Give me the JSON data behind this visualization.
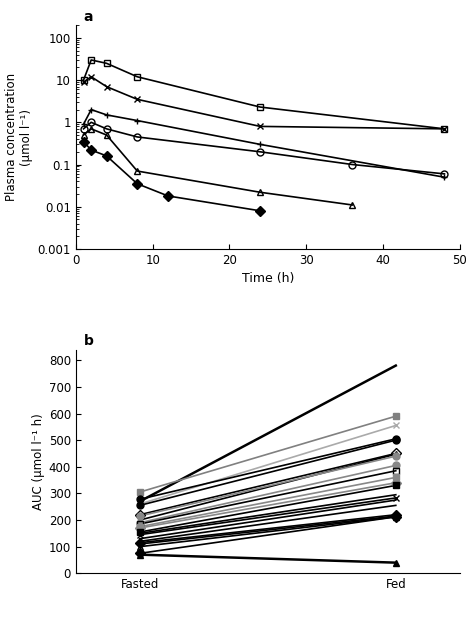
{
  "panel_a": {
    "title": "a",
    "xlabel": "Time (h)",
    "ylabel": "Plasma concentration\n(μmol l⁻¹)",
    "series": [
      {
        "label": "square_open",
        "marker": "s",
        "fillstyle": "none",
        "color": "black",
        "lw": 1.2,
        "x": [
          1,
          2,
          4,
          8,
          24,
          48
        ],
        "y": [
          10,
          30,
          25,
          12,
          2.3,
          0.7
        ]
      },
      {
        "label": "x_marker",
        "marker": "x",
        "fillstyle": "full",
        "color": "black",
        "lw": 1.2,
        "x": [
          1,
          2,
          4,
          8,
          24,
          48
        ],
        "y": [
          9,
          12,
          7,
          3.5,
          0.8,
          0.7
        ]
      },
      {
        "label": "plus_marker",
        "marker": "+",
        "fillstyle": "full",
        "color": "black",
        "lw": 1.2,
        "x": [
          1,
          2,
          4,
          8,
          24,
          48
        ],
        "y": [
          0.9,
          2.0,
          1.5,
          1.1,
          0.3,
          0.05
        ]
      },
      {
        "label": "circle_open",
        "marker": "o",
        "fillstyle": "none",
        "color": "black",
        "lw": 1.2,
        "x": [
          1,
          2,
          4,
          8,
          24,
          36,
          48
        ],
        "y": [
          0.7,
          1.0,
          0.7,
          0.45,
          0.2,
          0.1,
          0.06
        ]
      },
      {
        "label": "triangle_open",
        "marker": "^",
        "fillstyle": "none",
        "color": "black",
        "lw": 1.2,
        "x": [
          1,
          2,
          4,
          8,
          24,
          36
        ],
        "y": [
          0.5,
          0.7,
          0.5,
          0.07,
          0.022,
          0.011
        ]
      },
      {
        "label": "diamond_filled",
        "marker": "D",
        "fillstyle": "full",
        "color": "black",
        "lw": 1.2,
        "x": [
          1,
          2,
          4,
          8,
          12,
          24
        ],
        "y": [
          0.35,
          0.22,
          0.16,
          0.035,
          0.018,
          0.008
        ]
      }
    ],
    "ylim": [
      0.001,
      200
    ],
    "xlim": [
      0,
      50
    ],
    "xticks": [
      0,
      10,
      20,
      30,
      40,
      50
    ]
  },
  "panel_b": {
    "title": "b",
    "xlabel_fasted": "Fasted",
    "xlabel_fed": "Fed",
    "ylabel": "AUC (μmol l⁻¹ h)",
    "ylim": [
      0,
      840
    ],
    "yticks": [
      0,
      100,
      200,
      300,
      400,
      500,
      600,
      700,
      800
    ],
    "pairs": [
      {
        "fasted": 270,
        "fed": 780,
        "color": "black",
        "marker": null,
        "mfc": null,
        "lw": 1.8
      },
      {
        "fasted": 305,
        "fed": 590,
        "color": "#808080",
        "marker": "s",
        "mfc": "#808080",
        "lw": 1.2
      },
      {
        "fasted": 260,
        "fed": 555,
        "color": "#aaaaaa",
        "marker": "x",
        "mfc": "#aaaaaa",
        "lw": 1.2
      },
      {
        "fasted": 278,
        "fed": 505,
        "color": "black",
        "marker": "o",
        "mfc": "black",
        "lw": 1.2
      },
      {
        "fasted": 255,
        "fed": 500,
        "color": "black",
        "marker": "o",
        "mfc": "black",
        "lw": 1.2
      },
      {
        "fasted": 220,
        "fed": 450,
        "color": "black",
        "marker": "D",
        "mfc": "none",
        "lw": 1.2
      },
      {
        "fasted": 200,
        "fed": 447,
        "color": "black",
        "marker": "^",
        "mfc": "none",
        "lw": 1.2
      },
      {
        "fasted": 215,
        "fed": 440,
        "color": "#888888",
        "marker": "o",
        "mfc": "#888888",
        "lw": 1.2
      },
      {
        "fasted": 190,
        "fed": 405,
        "color": "#888888",
        "marker": "o",
        "mfc": "#888888",
        "lw": 1.2
      },
      {
        "fasted": 185,
        "fed": 385,
        "color": "black",
        "marker": "s",
        "mfc": "none",
        "lw": 1.2
      },
      {
        "fasted": 175,
        "fed": 360,
        "color": "#888888",
        "marker": "s",
        "mfc": "#888888",
        "lw": 1.2
      },
      {
        "fasted": 170,
        "fed": 340,
        "color": "#888888",
        "marker": "D",
        "mfc": "#888888",
        "lw": 1.2
      },
      {
        "fasted": 155,
        "fed": 330,
        "color": "black",
        "marker": "s",
        "mfc": "black",
        "lw": 1.2
      },
      {
        "fasted": 150,
        "fed": 295,
        "color": "black",
        "marker": null,
        "mfc": null,
        "lw": 1.2
      },
      {
        "fasted": 145,
        "fed": 283,
        "color": "black",
        "marker": "x",
        "mfc": "black",
        "lw": 1.2
      },
      {
        "fasted": 130,
        "fed": 275,
        "color": "black",
        "marker": null,
        "mfc": null,
        "lw": 1.2
      },
      {
        "fasted": 120,
        "fed": 255,
        "color": "black",
        "marker": null,
        "mfc": null,
        "lw": 1.2
      },
      {
        "fasted": 115,
        "fed": 220,
        "color": "black",
        "marker": "D",
        "mfc": "black",
        "lw": 1.2
      },
      {
        "fasted": 110,
        "fed": 215,
        "color": "black",
        "marker": null,
        "mfc": null,
        "lw": 1.2
      },
      {
        "fasted": 100,
        "fed": 212,
        "color": "black",
        "marker": "^",
        "mfc": "none",
        "lw": 1.2
      },
      {
        "fasted": 75,
        "fed": 212,
        "color": "black",
        "marker": "D",
        "mfc": "black",
        "lw": 1.2
      },
      {
        "fasted": 70,
        "fed": 40,
        "color": "black",
        "marker": "^",
        "mfc": "black",
        "lw": 1.8
      }
    ]
  }
}
